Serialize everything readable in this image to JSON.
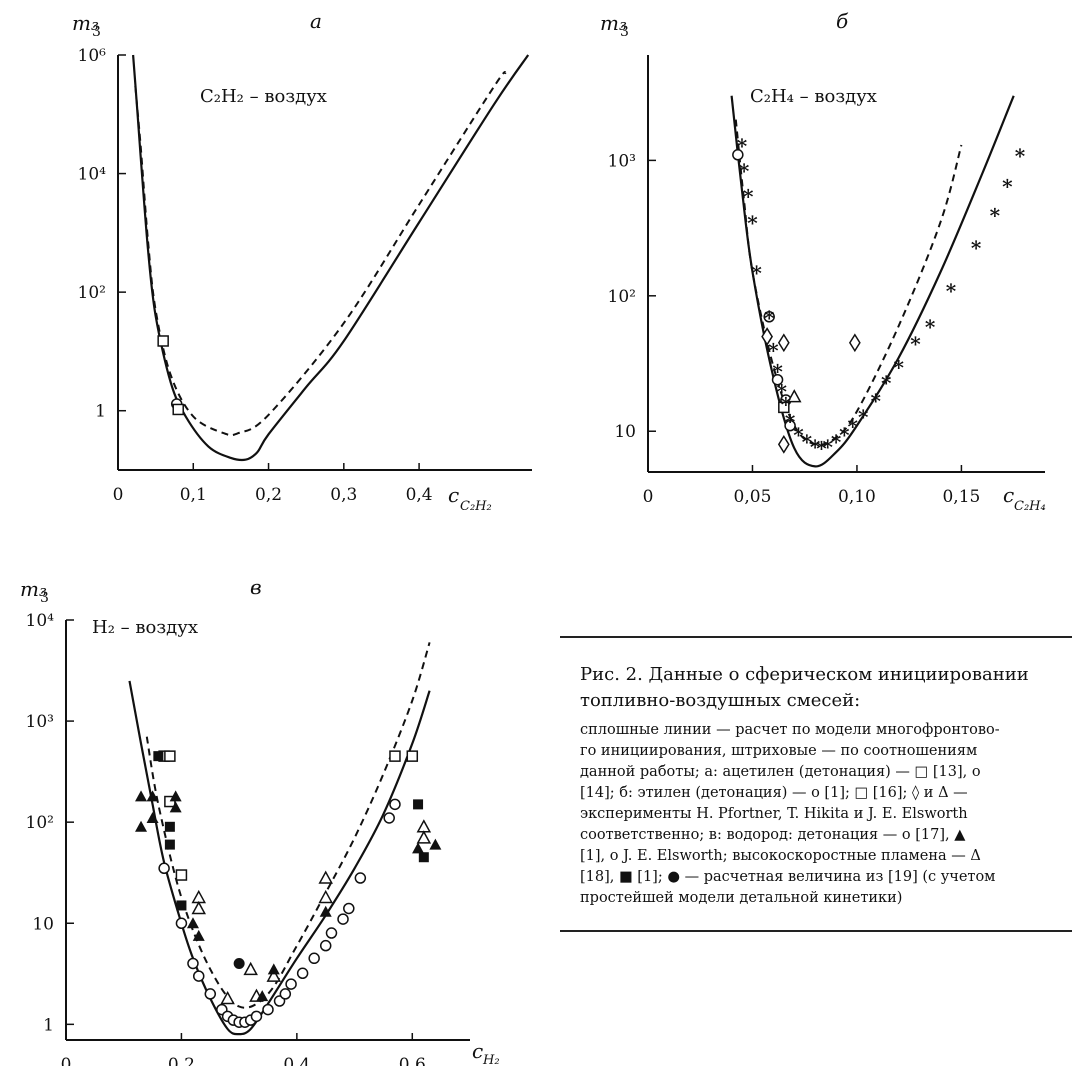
{
  "chart_data": [
    {
      "panel": "a",
      "type": "line",
      "title": "а",
      "annotation": "C₂H₂ – воздух",
      "ylabel": "m₃",
      "xlabel": "c",
      "xlabel_sub": "C₂H₂",
      "x_ticks": [
        "0",
        "0,1",
        "0,2",
        "0,3",
        "0,4"
      ],
      "y_ticks": [
        "1",
        "10²",
        "10⁴",
        "10⁶"
      ],
      "y_scale": "log",
      "x_range": [
        0,
        0.55
      ],
      "y_range": [
        0.1,
        1000000
      ],
      "series": [
        {
          "style": "solid",
          "x": [
            0.02,
            0.025,
            0.03,
            0.04,
            0.05,
            0.07,
            0.09,
            0.12,
            0.15,
            0.17,
            0.185,
            0.2,
            0.25,
            0.3,
            0.4,
            0.5,
            0.545
          ],
          "y": [
            1000000,
            150000,
            20000,
            500,
            40,
            3,
            0.8,
            0.25,
            0.16,
            0.15,
            0.2,
            0.4,
            2.5,
            15,
            1500,
            150000,
            1000000
          ]
        },
        {
          "style": "dashed",
          "x": [
            0.023,
            0.03,
            0.04,
            0.05,
            0.07,
            0.1,
            0.14,
            0.16,
            0.2,
            0.3,
            0.4,
            0.5,
            0.515
          ],
          "y": [
            300000,
            30000,
            700,
            50,
            4,
            0.8,
            0.42,
            0.42,
            0.85,
            30,
            3000,
            300000,
            500000
          ]
        }
      ],
      "markers": [
        {
          "shape": "square",
          "points": [
            [
              0.06,
              15
            ]
          ]
        },
        {
          "shape": "circle",
          "points": [
            [
              0.078,
              1.3
            ]
          ]
        },
        {
          "shape": "square",
          "points": [
            [
              0.08,
              1.05
            ]
          ]
        }
      ]
    },
    {
      "panel": "б",
      "type": "line",
      "title": "б",
      "annotation": "C₂H₄ – воздух",
      "ylabel": "m₃",
      "xlabel": "c",
      "xlabel_sub": "C₂H₄",
      "x_ticks": [
        "0",
        "0,05",
        "0,10",
        "0,15"
      ],
      "y_ticks": [
        "10",
        "10²",
        "10³"
      ],
      "y_scale": "log",
      "x_range": [
        0,
        0.19
      ],
      "y_range": [
        5,
        6000
      ],
      "series": [
        {
          "style": "solid",
          "x": [
            0.04,
            0.045,
            0.05,
            0.06,
            0.07,
            0.08,
            0.09,
            0.1,
            0.12,
            0.14,
            0.16,
            0.175
          ],
          "y": [
            3000,
            600,
            150,
            25,
            7.5,
            5.5,
            7,
            11,
            35,
            150,
            800,
            3000
          ]
        },
        {
          "style": "dashed",
          "x": [
            0.042,
            0.046,
            0.05,
            0.06,
            0.07,
            0.08,
            0.09,
            0.1,
            0.12,
            0.14,
            0.15
          ],
          "y": [
            2000,
            500,
            150,
            30,
            11,
            8,
            9,
            14,
            60,
            350,
            1300
          ]
        }
      ],
      "markers": [
        {
          "shape": "circle",
          "points": [
            [
              0.043,
              1100
            ],
            [
              0.058,
              70
            ],
            [
              0.062,
              24
            ],
            [
              0.066,
              17
            ],
            [
              0.068,
              11
            ]
          ]
        },
        {
          "shape": "diamond",
          "points": [
            [
              0.057,
              50
            ],
            [
              0.065,
              45
            ],
            [
              0.099,
              45
            ],
            [
              0.065,
              8
            ]
          ]
        },
        {
          "shape": "square",
          "points": [
            [
              0.065,
              15
            ]
          ]
        },
        {
          "shape": "triangle",
          "points": [
            [
              0.07,
              18
            ]
          ]
        },
        {
          "shape": "star",
          "points": [
            [
              0.045,
              1300
            ],
            [
              0.046,
              850
            ],
            [
              0.048,
              550
            ],
            [
              0.05,
              350
            ],
            [
              0.052,
              150
            ],
            [
              0.058,
              70
            ],
            [
              0.06,
              40
            ],
            [
              0.062,
              28
            ],
            [
              0.064,
              20
            ],
            [
              0.066,
              16
            ],
            [
              0.068,
              12
            ],
            [
              0.072,
              9.5
            ],
            [
              0.076,
              8.5
            ],
            [
              0.08,
              7.8
            ],
            [
              0.083,
              7.6
            ],
            [
              0.086,
              7.8
            ],
            [
              0.09,
              8.5
            ],
            [
              0.094,
              9.5
            ],
            [
              0.098,
              11
            ],
            [
              0.103,
              13
            ],
            [
              0.109,
              17
            ],
            [
              0.114,
              23
            ],
            [
              0.12,
              30
            ],
            [
              0.128,
              45
            ],
            [
              0.135,
              60
            ],
            [
              0.145,
              110
            ],
            [
              0.157,
              230
            ],
            [
              0.166,
              400
            ],
            [
              0.172,
              650
            ],
            [
              0.178,
              1100
            ]
          ]
        }
      ]
    },
    {
      "panel": "в",
      "type": "line",
      "title": "в",
      "annotation": "H₂ – воздух",
      "ylabel": "m₃",
      "xlabel": "c",
      "xlabel_sub": "H₂",
      "x_ticks": [
        "0",
        "0,2",
        "0,4",
        "0,6"
      ],
      "y_ticks": [
        "1",
        "10",
        "10²",
        "10³",
        "10⁴"
      ],
      "y_scale": "log",
      "x_range": [
        0,
        0.7
      ],
      "y_range": [
        0.7,
        10000
      ],
      "series": [
        {
          "style": "solid",
          "x": [
            0.11,
            0.13,
            0.15,
            0.17,
            0.2,
            0.22,
            0.25,
            0.28,
            0.3,
            0.32,
            0.35,
            0.4,
            0.45,
            0.5,
            0.55,
            0.6,
            0.63
          ],
          "y": [
            2500,
            600,
            150,
            40,
            10,
            4.5,
            1.8,
            0.9,
            0.8,
            0.9,
            1.6,
            4.5,
            12,
            35,
            120,
            600,
            2000
          ]
        },
        {
          "style": "dashed",
          "x": [
            0.14,
            0.16,
            0.2,
            0.25,
            0.3,
            0.35,
            0.4,
            0.45,
            0.5,
            0.55,
            0.6,
            0.63
          ],
          "y": [
            700,
            150,
            18,
            3.5,
            1.5,
            2,
            6,
            20,
            70,
            300,
            1600,
            6000
          ]
        }
      ],
      "markers": [
        {
          "shape": "open-circle",
          "points": [
            [
              0.17,
              35
            ],
            [
              0.2,
              10
            ],
            [
              0.22,
              4
            ],
            [
              0.23,
              3
            ],
            [
              0.25,
              2
            ],
            [
              0.27,
              1.4
            ],
            [
              0.28,
              1.2
            ],
            [
              0.29,
              1.1
            ],
            [
              0.3,
              1.05
            ],
            [
              0.31,
              1.05
            ],
            [
              0.32,
              1.1
            ],
            [
              0.33,
              1.2
            ],
            [
              0.35,
              1.4
            ],
            [
              0.37,
              1.7
            ],
            [
              0.38,
              2
            ],
            [
              0.39,
              2.5
            ],
            [
              0.41,
              3.2
            ],
            [
              0.43,
              4.5
            ],
            [
              0.45,
              6
            ],
            [
              0.46,
              8
            ],
            [
              0.48,
              11
            ],
            [
              0.49,
              14
            ],
            [
              0.51,
              28
            ],
            [
              0.56,
              110
            ],
            [
              0.57,
              150
            ]
          ]
        },
        {
          "shape": "open-square",
          "points": [
            [
              0.17,
              450
            ],
            [
              0.18,
              450
            ],
            [
              0.18,
              160
            ],
            [
              0.2,
              30
            ],
            [
              0.57,
              450
            ],
            [
              0.6,
              450
            ]
          ]
        },
        {
          "shape": "filled-square",
          "points": [
            [
              0.16,
              450
            ],
            [
              0.18,
              90
            ],
            [
              0.18,
              60
            ],
            [
              0.2,
              15
            ],
            [
              0.61,
              150
            ],
            [
              0.62,
              45
            ]
          ]
        },
        {
          "shape": "open-triangle",
          "points": [
            [
              0.23,
              18
            ],
            [
              0.23,
              14
            ],
            [
              0.28,
              1.8
            ],
            [
              0.32,
              3.5
            ],
            [
              0.33,
              1.9
            ],
            [
              0.36,
              3
            ],
            [
              0.45,
              28
            ],
            [
              0.45,
              18
            ],
            [
              0.62,
              90
            ],
            [
              0.62,
              70
            ]
          ]
        },
        {
          "shape": "filled-triangle",
          "points": [
            [
              0.13,
              180
            ],
            [
              0.13,
              90
            ],
            [
              0.15,
              180
            ],
            [
              0.15,
              110
            ],
            [
              0.19,
              180
            ],
            [
              0.19,
              140
            ],
            [
              0.22,
              10
            ],
            [
              0.23,
              7.5
            ],
            [
              0.34,
              1.9
            ],
            [
              0.36,
              3.5
            ],
            [
              0.45,
              13
            ],
            [
              0.61,
              55
            ],
            [
              0.64,
              60
            ]
          ]
        },
        {
          "shape": "filled-circle",
          "points": [
            [
              0.3,
              4
            ]
          ]
        }
      ]
    }
  ],
  "caption": {
    "title": "Рис. 2. Данные о сферическом инициировании топливно-воздушных смесей:",
    "lines": [
      "сплошные линии — расчет по модели многофронтово-",
      "го инициирования, штриховые — по соотношениям",
      "данной работы; а: ацетилен (детонация) — □ [13], о",
      "[14]; б: этилен (детонация) — о [1]; □ [16]; ◊ и Δ —",
      "эксперименты H. Pfortner, T. Hikita и J. E. Elsworth",
      "соответственно; в: водород: детонация — о [17], ▲",
      "[1], о J. E. Elsworth; высокоскоростные пламена — Δ",
      "[18], ■ [1]; ● — расчетная величина из [19] (с учетом",
      "простейшей модели детальной кинетики)"
    ]
  }
}
